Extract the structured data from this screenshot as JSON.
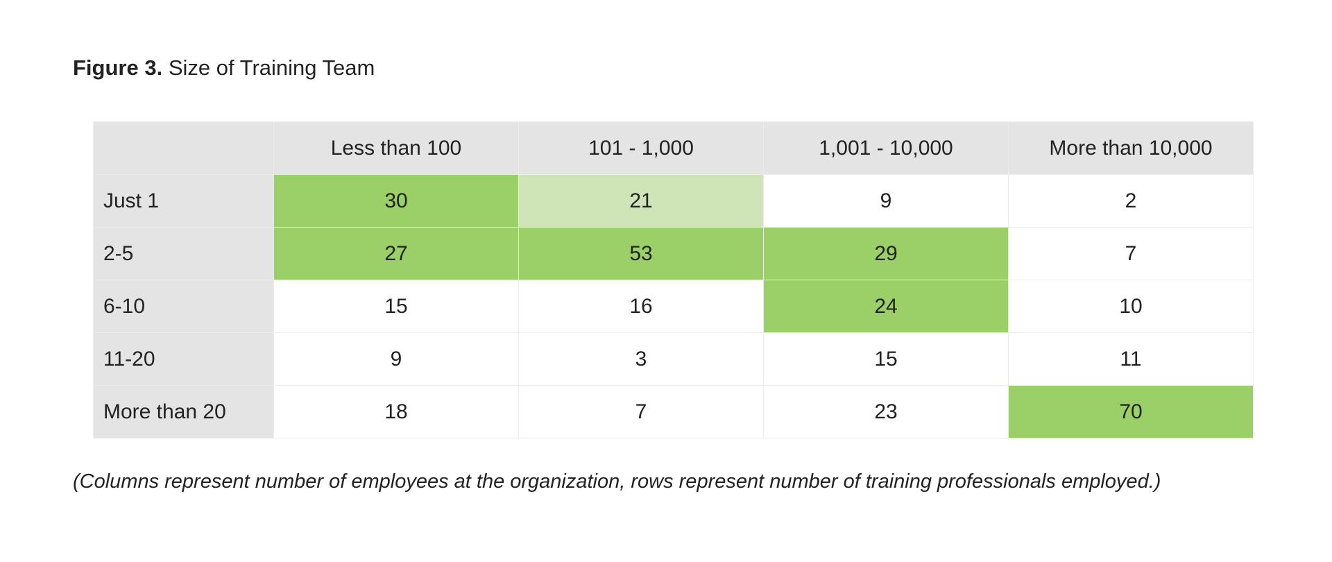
{
  "figure": {
    "label": "Figure 3.",
    "title": "Size of Training Team"
  },
  "caption": "(Columns represent number of employees at the organization, rows represent number of training professionals employed.)",
  "colors": {
    "header_bg": "#e4e4e4",
    "high": "#9bd068",
    "medium": "#cfe5b8",
    "none": "#ffffff",
    "text": "#222222"
  },
  "chart_data": {
    "type": "heatmap",
    "title": "Size of Training Team",
    "columns": [
      "Less than 100",
      "101 - 1,000",
      "1,001 - 10,000",
      "More than 10,000"
    ],
    "rows": [
      {
        "label": "Just 1",
        "values": [
          30,
          21,
          9,
          2
        ],
        "highlight": [
          "high",
          "medium",
          "none",
          "none"
        ]
      },
      {
        "label": "2-5",
        "values": [
          27,
          53,
          29,
          7
        ],
        "highlight": [
          "high",
          "high",
          "high",
          "none"
        ]
      },
      {
        "label": "6-10",
        "values": [
          15,
          16,
          24,
          10
        ],
        "highlight": [
          "none",
          "none",
          "high",
          "none"
        ]
      },
      {
        "label": "11-20",
        "values": [
          9,
          3,
          15,
          11
        ],
        "highlight": [
          "none",
          "none",
          "none",
          "none"
        ]
      },
      {
        "label": "More than 20",
        "values": [
          18,
          7,
          23,
          70
        ],
        "highlight": [
          "none",
          "none",
          "none",
          "high"
        ]
      }
    ]
  }
}
